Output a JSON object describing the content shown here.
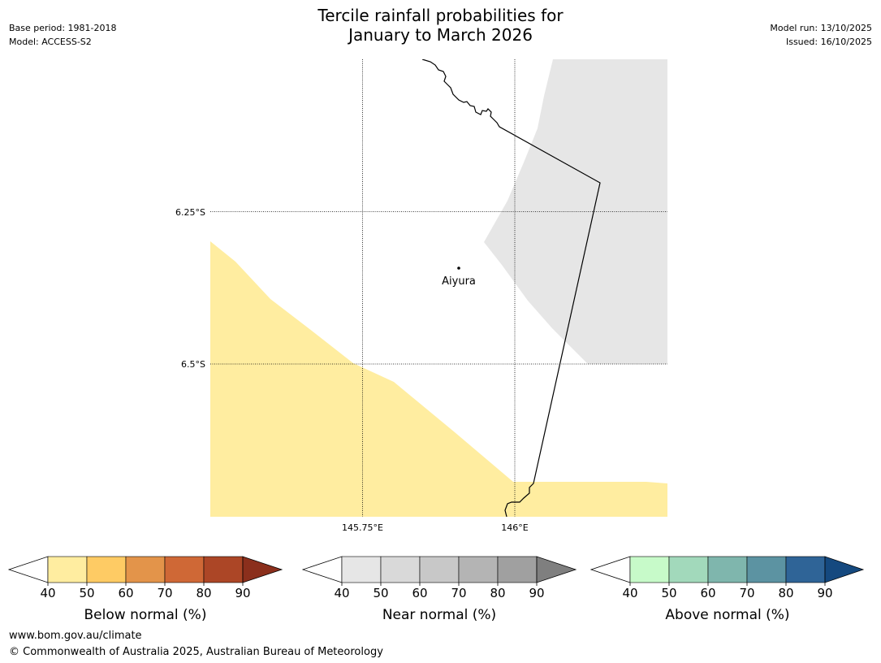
{
  "header": {
    "title_line1": "Tercile rainfall probabilities for",
    "title_line2": "January to March 2026",
    "base_period": "Base period: 1981-2018",
    "model": "Model: ACCESS-S2",
    "model_run": "Model run: 13/10/2025",
    "issued": "Issued: 16/10/2025"
  },
  "map": {
    "lat_labels": [
      "6.25°S",
      "6.5°S"
    ],
    "lon_labels": [
      "145.75°E",
      "146°E"
    ],
    "place": {
      "name": "Aiyura"
    },
    "colors": {
      "below_normal_fill": "#ffeda0",
      "near_normal_fill": "#e6e6e6",
      "border": "#000000"
    }
  },
  "colorbars": [
    {
      "id": "below",
      "label": "Below normal (%)",
      "ticks": [
        "40",
        "50",
        "60",
        "70",
        "80",
        "90"
      ],
      "colors": [
        "#ffeda0",
        "#fecb64",
        "#e3944a",
        "#cf6836",
        "#ac4626"
      ],
      "extend_color": "#8b2f1c"
    },
    {
      "id": "near",
      "label": "Near normal (%)",
      "ticks": [
        "40",
        "50",
        "60",
        "70",
        "80",
        "90"
      ],
      "colors": [
        "#e6e6e6",
        "#d9d9d9",
        "#c8c8c8",
        "#b4b4b4",
        "#a0a0a0"
      ],
      "extend_color": "#7f7f7f"
    },
    {
      "id": "above",
      "label": "Above normal (%)",
      "ticks": [
        "40",
        "50",
        "60",
        "70",
        "80",
        "90"
      ],
      "colors": [
        "#c7fac9",
        "#a2d9bb",
        "#7fb6ad",
        "#5c93a2",
        "#2f6497"
      ],
      "extend_color": "#15497f"
    }
  ],
  "footer": {
    "url": "www.bom.gov.au/climate",
    "copyright": "© Commonwealth of Australia 2025, Australian Bureau of Meteorology"
  }
}
